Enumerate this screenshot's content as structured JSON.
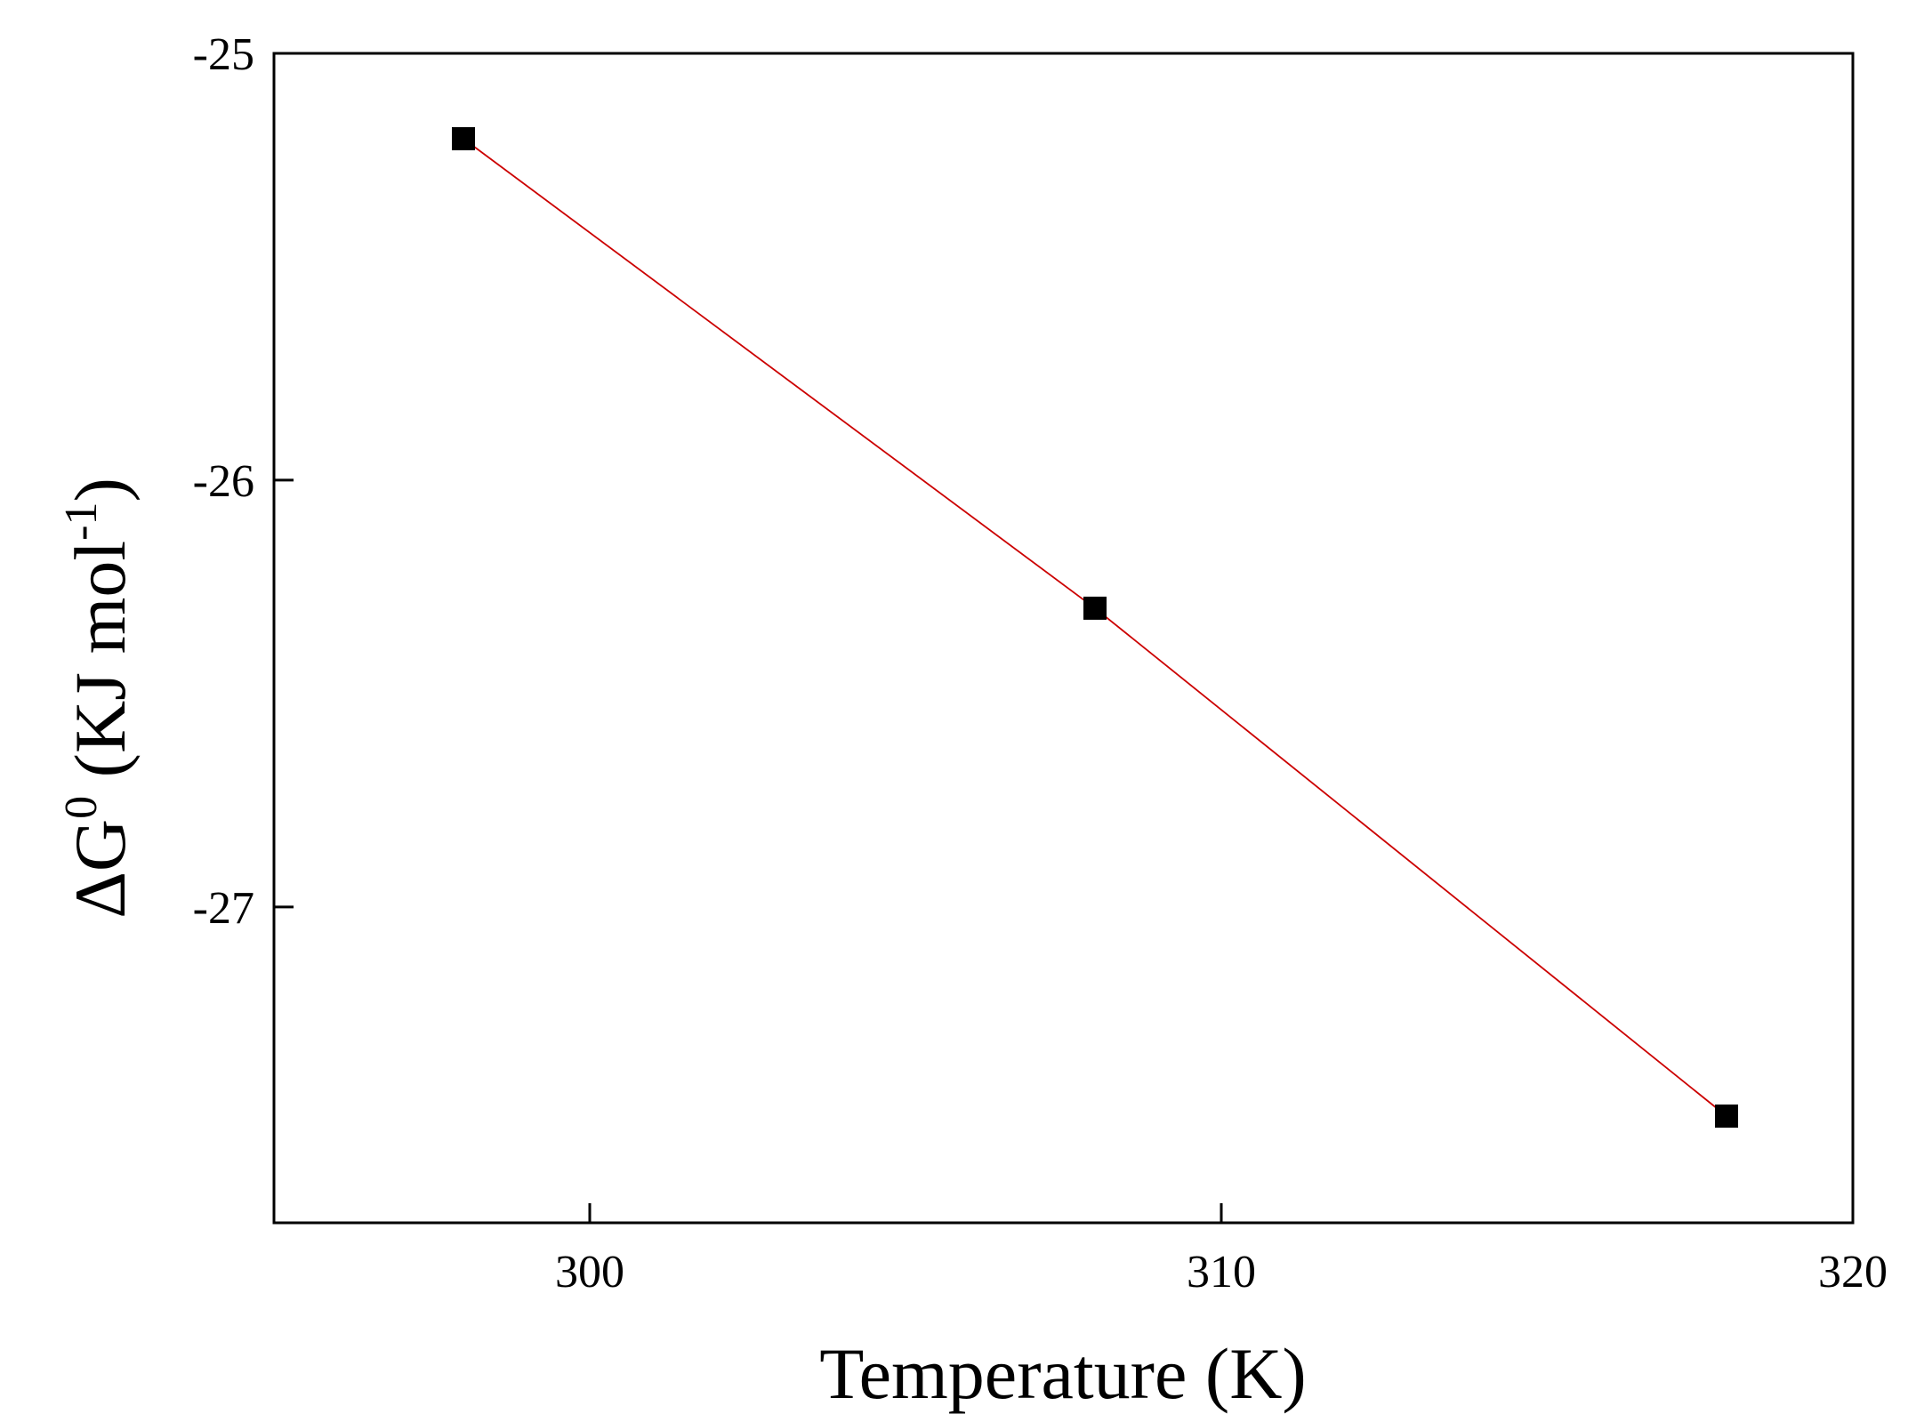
{
  "chart_data": {
    "type": "scatter",
    "xlabel": "Temperature (K)",
    "ylabel": {
      "prefix": "ΔG",
      "prefix_sup": "0",
      "main": " (KJ mol",
      "main_sup": "-1",
      "suffix": ")"
    },
    "xlim": [
      295,
      320
    ],
    "ylim": [
      -27.74,
      -25
    ],
    "xticks": [
      300,
      310,
      320
    ],
    "yticks": [
      -25,
      -26,
      -27
    ],
    "grid": false,
    "legend": "none",
    "series": [
      {
        "marker": "square",
        "marker_color": "#000000",
        "line_color": "#cc0000",
        "x": [
          298,
          308,
          318
        ],
        "y": [
          -25.2,
          -26.3,
          -27.49
        ]
      }
    ]
  }
}
